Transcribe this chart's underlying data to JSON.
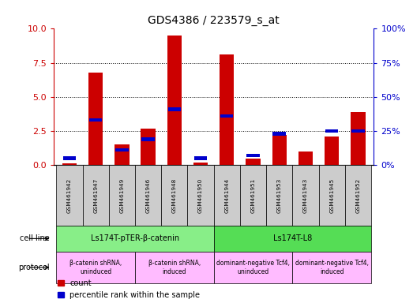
{
  "title": "GDS4386 / 223579_s_at",
  "samples": [
    "GSM461942",
    "GSM461947",
    "GSM461949",
    "GSM461946",
    "GSM461948",
    "GSM461950",
    "GSM461944",
    "GSM461951",
    "GSM461953",
    "GSM461943",
    "GSM461945",
    "GSM461952"
  ],
  "count_values": [
    0.15,
    6.8,
    1.5,
    2.7,
    9.5,
    0.2,
    8.1,
    0.5,
    2.2,
    1.0,
    2.1,
    3.9
  ],
  "percentile_values": [
    5,
    33,
    11,
    19,
    41,
    5,
    36,
    7,
    23,
    0,
    25,
    25
  ],
  "ylim_left": [
    0,
    10
  ],
  "ylim_right": [
    0,
    100
  ],
  "yticks_left": [
    0,
    2.5,
    5,
    7.5,
    10
  ],
  "yticks_right": [
    0,
    25,
    50,
    75,
    100
  ],
  "bar_color_red": "#cc0000",
  "bar_color_blue": "#0000cc",
  "cell_line_groups": [
    {
      "label": "Ls174T-pTER-β-catenin",
      "start": 0,
      "end": 5,
      "color": "#88ee88"
    },
    {
      "label": "Ls174T-L8",
      "start": 6,
      "end": 11,
      "color": "#55dd55"
    }
  ],
  "protocol_groups": [
    {
      "label": "β-catenin shRNA,\nuninduced",
      "start": 0,
      "end": 2,
      "color": "#ffbbff"
    },
    {
      "label": "β-catenin shRNA,\ninduced",
      "start": 3,
      "end": 5,
      "color": "#ffbbff"
    },
    {
      "label": "dominant-negative Tcf4,\nuninduced",
      "start": 6,
      "end": 8,
      "color": "#ffbbff"
    },
    {
      "label": "dominant-negative Tcf4,\ninduced",
      "start": 9,
      "end": 11,
      "color": "#ffbbff"
    }
  ],
  "legend_count_label": "count",
  "legend_pct_label": "percentile rank within the sample",
  "cell_line_label": "cell line",
  "protocol_label": "protocol",
  "background_color": "#ffffff"
}
